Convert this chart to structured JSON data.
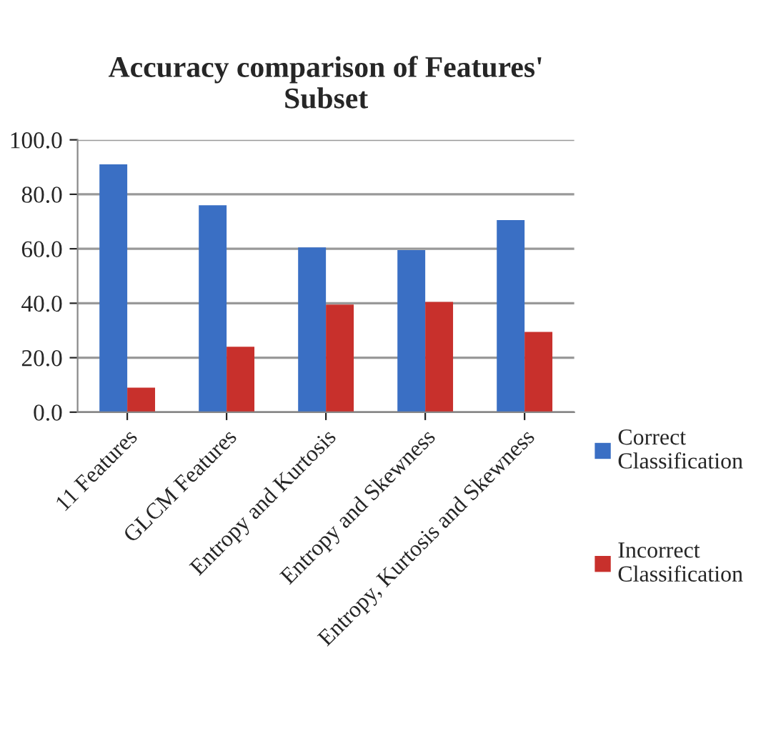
{
  "chart_data": {
    "type": "bar",
    "title": "Accuracy comparison of Features'\nSubset",
    "categories": [
      "11 Features",
      "GLCM Features",
      "Entropy and Kurtosis",
      "Entropy and Skewness",
      "Entropy, Kurtosis and Skewness"
    ],
    "series": [
      {
        "name": "Correct\nClassification",
        "color": "#3a6fc4",
        "values": [
          91,
          76,
          60.5,
          59.5,
          70.5
        ]
      },
      {
        "name": "Incorrect\nClassification",
        "color": "#c8302c",
        "values": [
          9,
          24,
          39.5,
          40.5,
          29.5
        ]
      }
    ],
    "ylim": [
      0,
      100
    ],
    "yticks": [
      {
        "value": 0,
        "label": "0.0"
      },
      {
        "value": 20,
        "label": "20.0"
      },
      {
        "value": 40,
        "label": "40.0"
      },
      {
        "value": 60,
        "label": "60.0"
      },
      {
        "value": 80,
        "label": "80.0"
      },
      {
        "value": 100,
        "label": "100.0"
      }
    ],
    "grid": "y",
    "legend": "right"
  }
}
